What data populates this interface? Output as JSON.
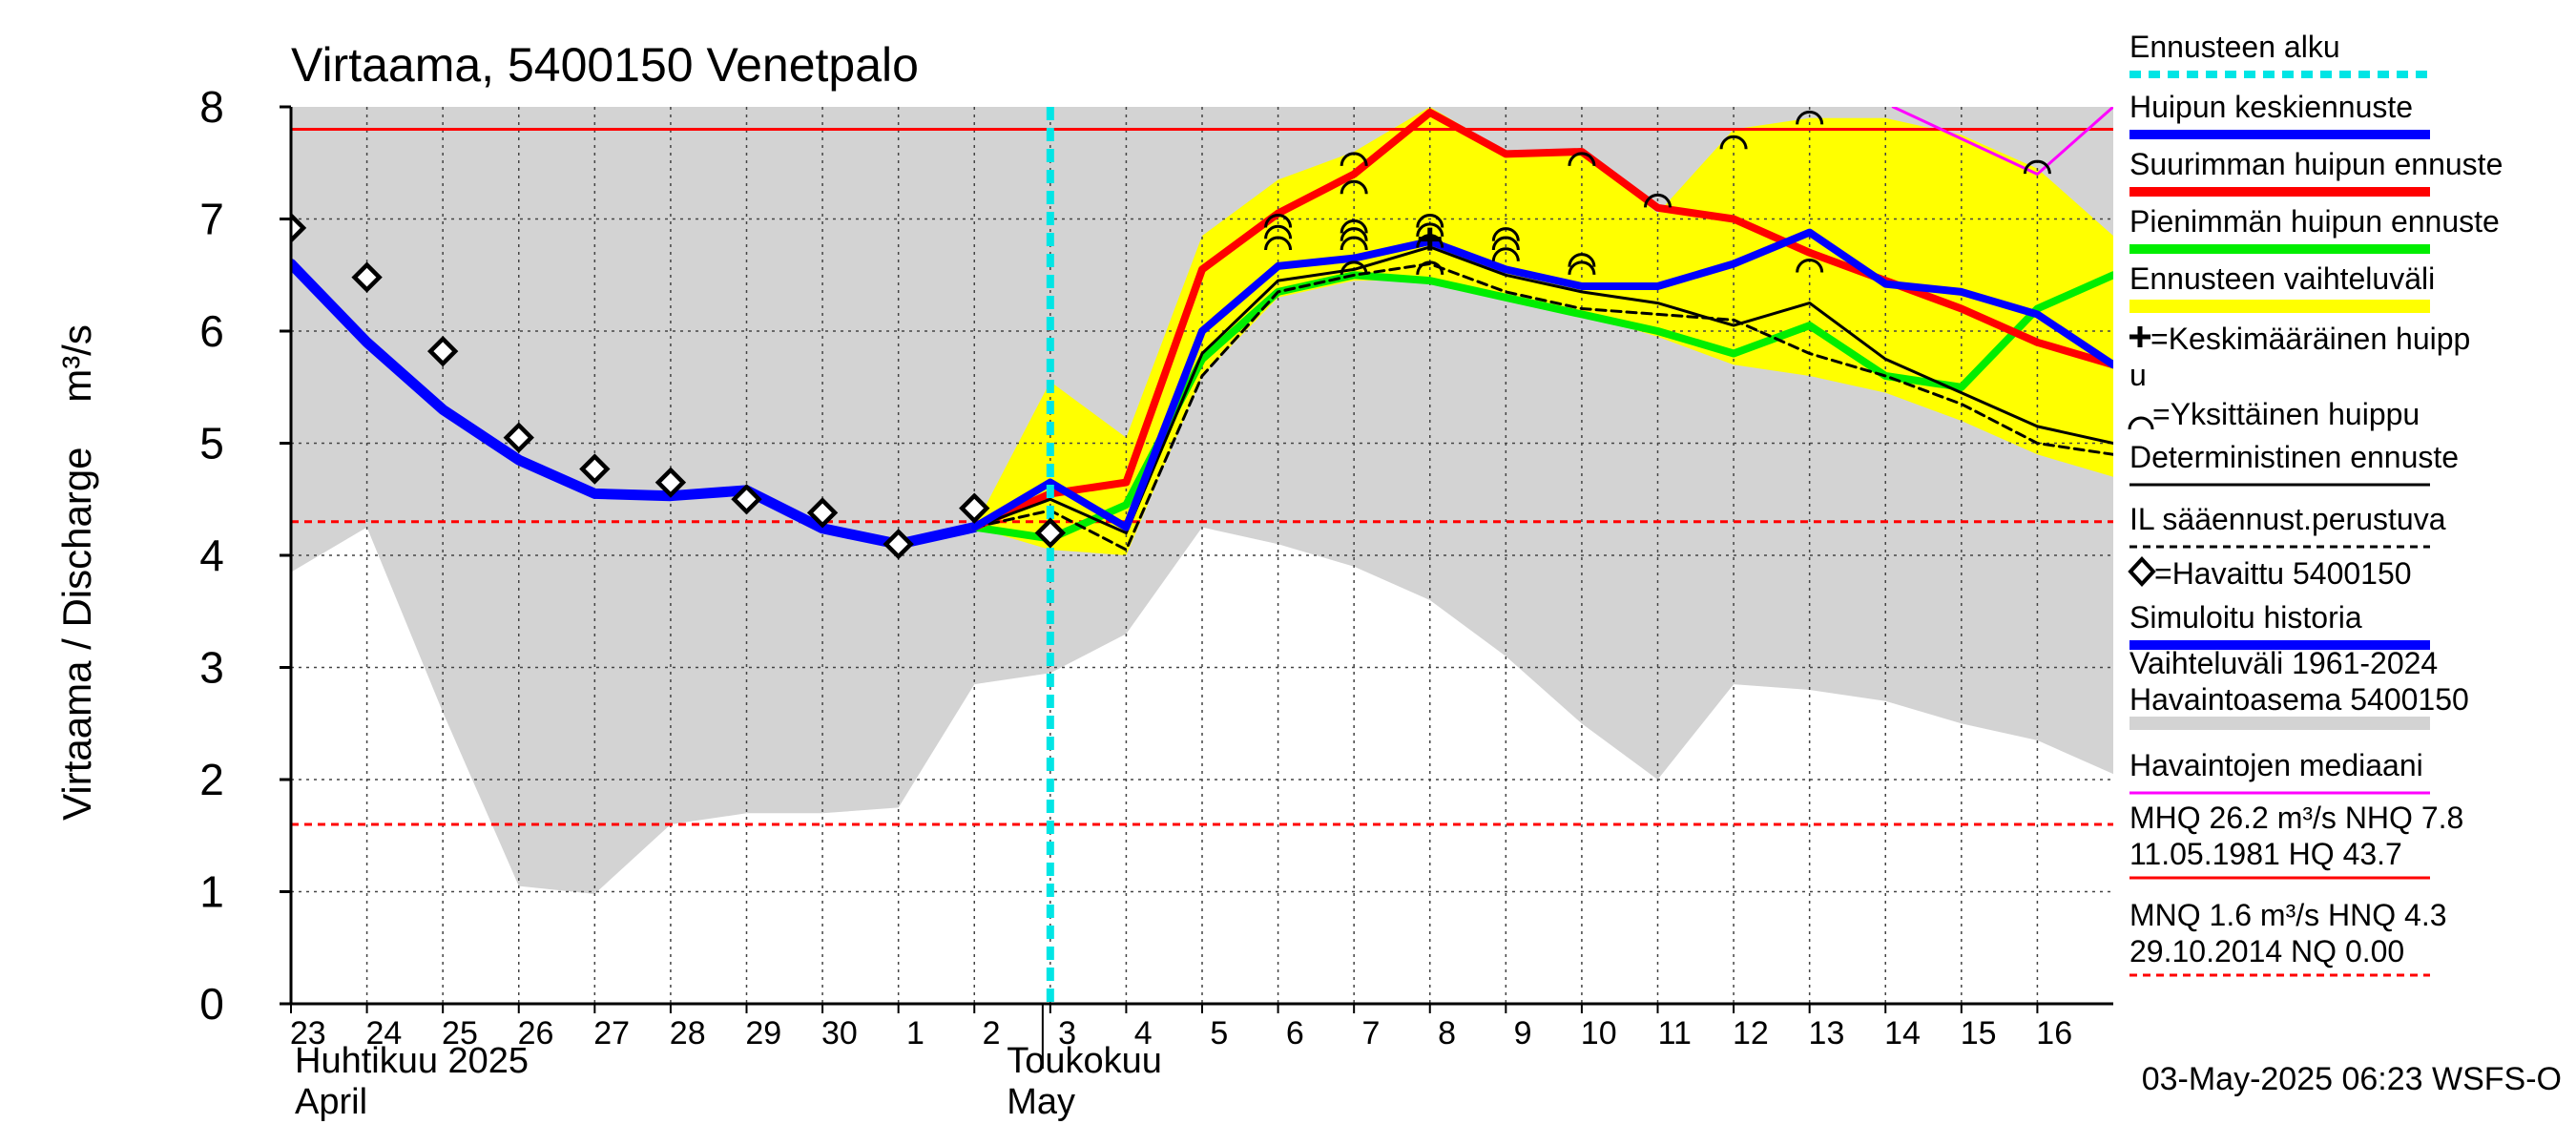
{
  "chart_data": {
    "type": "line",
    "title": "Virtaama, 5400150 Venetpalo",
    "ylabel": "Virtaama / Discharge    m³/s",
    "ylim": [
      0,
      8
    ],
    "yticks": [
      0,
      1,
      2,
      3,
      4,
      5,
      6,
      7,
      8
    ],
    "x_range": [
      0,
      24
    ],
    "x_days": [
      {
        "x": 0,
        "label": "23"
      },
      {
        "x": 1,
        "label": "24"
      },
      {
        "x": 2,
        "label": "25"
      },
      {
        "x": 3,
        "label": "26"
      },
      {
        "x": 4,
        "label": "27"
      },
      {
        "x": 5,
        "label": "28"
      },
      {
        "x": 6,
        "label": "29"
      },
      {
        "x": 7,
        "label": "30"
      },
      {
        "x": 8,
        "label": "1"
      },
      {
        "x": 9,
        "label": "2"
      },
      {
        "x": 10,
        "label": "3"
      },
      {
        "x": 11,
        "label": "4"
      },
      {
        "x": 12,
        "label": "5"
      },
      {
        "x": 13,
        "label": "6"
      },
      {
        "x": 14,
        "label": "7"
      },
      {
        "x": 15,
        "label": "8"
      },
      {
        "x": 16,
        "label": "9"
      },
      {
        "x": 17,
        "label": "10"
      },
      {
        "x": 18,
        "label": "11"
      },
      {
        "x": 19,
        "label": "12"
      },
      {
        "x": 20,
        "label": "13"
      },
      {
        "x": 21,
        "label": "14"
      },
      {
        "x": 22,
        "label": "15"
      },
      {
        "x": 23,
        "label": "16"
      }
    ],
    "month_labels": [
      {
        "line1": "Huhtikuu  2025",
        "line2": "April",
        "x": 0
      },
      {
        "line1": "Toukokuu",
        "line2": "May",
        "x": 9
      }
    ],
    "forecast_start": 10,
    "hlines": [
      {
        "name": "NHQ",
        "y": 7.8,
        "color": "#ff0000",
        "style": "solid"
      },
      {
        "name": "HNQ",
        "y": 4.3,
        "color": "#ff0000",
        "style": "dashed"
      },
      {
        "name": "MNQ",
        "y": 1.6,
        "color": "#ff0000",
        "style": "dashed"
      },
      {
        "name": "NQ",
        "y": 0.0,
        "color": "#ff0000",
        "style": "dashed"
      }
    ],
    "historical_range": {
      "x": [
        0,
        1,
        2,
        3,
        4,
        5,
        6,
        7,
        8,
        9,
        10,
        11,
        12,
        13,
        14,
        15,
        16,
        17,
        18,
        19,
        20,
        21,
        22,
        23,
        24
      ],
      "low": [
        3.85,
        4.25,
        2.6,
        1.05,
        0.98,
        1.6,
        1.7,
        1.7,
        1.75,
        2.85,
        2.95,
        3.3,
        4.25,
        4.1,
        3.9,
        3.6,
        3.1,
        2.5,
        2.0,
        2.85,
        2.8,
        2.7,
        2.5,
        2.35,
        2.05
      ],
      "high": [
        8,
        8,
        8,
        8,
        8,
        8,
        8,
        8,
        8,
        8,
        8,
        8,
        8,
        8,
        8,
        8,
        8,
        8,
        8,
        8,
        8,
        8,
        8,
        8,
        8
      ]
    },
    "forecast_range": {
      "x": [
        9,
        10,
        11,
        12,
        13,
        14,
        15,
        16,
        17,
        18,
        19,
        20,
        21,
        22,
        23,
        24
      ],
      "low": [
        4.25,
        4.05,
        4.0,
        5.6,
        6.3,
        6.45,
        6.45,
        6.3,
        6.15,
        5.95,
        5.7,
        5.6,
        5.45,
        5.2,
        4.9,
        4.7
      ],
      "high": [
        4.25,
        5.55,
        5.05,
        6.85,
        7.35,
        7.6,
        8.0,
        7.6,
        7.6,
        7.05,
        7.8,
        7.9,
        7.9,
        7.75,
        7.45,
        6.85
      ]
    },
    "series": [
      {
        "name": "Simuloitu historia",
        "color": "#0000ff",
        "width": 11,
        "style": "solid",
        "x": [
          0,
          1,
          2,
          3,
          4,
          5,
          6,
          7,
          8,
          9
        ],
        "values": [
          6.6,
          5.9,
          5.3,
          4.85,
          4.55,
          4.53,
          4.58,
          4.24,
          4.1,
          4.25
        ]
      },
      {
        "name": "Pienimmän huipun ennuste",
        "color": "#00ee00",
        "width": 8,
        "style": "solid",
        "x": [
          9,
          10,
          11,
          12,
          13,
          14,
          15,
          16,
          17,
          18,
          19,
          20,
          21,
          22,
          23,
          24
        ],
        "values": [
          4.25,
          4.15,
          4.45,
          5.75,
          6.35,
          6.5,
          6.45,
          6.3,
          6.15,
          6.0,
          5.8,
          6.05,
          5.6,
          5.5,
          6.2,
          6.5
        ]
      },
      {
        "name": "Suurimman huipun ennuste",
        "color": "#ff0000",
        "width": 8,
        "style": "solid",
        "x": [
          9,
          10,
          11,
          12,
          13,
          14,
          15,
          16,
          17,
          18,
          19,
          20,
          21,
          22,
          23,
          24
        ],
        "values": [
          4.25,
          4.55,
          4.65,
          6.55,
          7.05,
          7.4,
          7.95,
          7.58,
          7.6,
          7.1,
          7.0,
          6.7,
          6.45,
          6.2,
          5.9,
          5.7
        ]
      },
      {
        "name": "Deterministinen ennuste",
        "color": "#000000",
        "width": 3,
        "style": "solid",
        "x": [
          9,
          10,
          11,
          12,
          13,
          14,
          15,
          16,
          17,
          18,
          19,
          20,
          21,
          22,
          23,
          24
        ],
        "values": [
          4.25,
          4.5,
          4.2,
          5.8,
          6.45,
          6.55,
          6.75,
          6.5,
          6.35,
          6.25,
          6.05,
          6.25,
          5.75,
          5.45,
          5.15,
          5.0
        ]
      },
      {
        "name": "IL sääennust.perustuva",
        "color": "#000000",
        "width": 3,
        "style": "dashed",
        "x": [
          9,
          10,
          11,
          12,
          13,
          14,
          15,
          16,
          17,
          18,
          19,
          20,
          21,
          22,
          23,
          24
        ],
        "values": [
          4.25,
          4.4,
          4.05,
          5.6,
          6.35,
          6.5,
          6.6,
          6.35,
          6.2,
          6.15,
          6.1,
          5.8,
          5.6,
          5.35,
          5.0,
          4.9
        ]
      },
      {
        "name": "Huipun keskiennuste",
        "color": "#0000ff",
        "width": 8,
        "style": "solid",
        "x": [
          9,
          10,
          11,
          12,
          13,
          14,
          15,
          16,
          17,
          18,
          19,
          20,
          21,
          22,
          23,
          24
        ],
        "values": [
          4.25,
          4.65,
          4.25,
          6.0,
          6.58,
          6.65,
          6.8,
          6.55,
          6.4,
          6.4,
          6.6,
          6.88,
          6.42,
          6.35,
          6.15,
          5.7
        ]
      },
      {
        "name": "Havaintojen mediaani",
        "color": "#ff00ff",
        "width": 3,
        "style": "solid",
        "x": [
          21.1,
          23,
          24
        ],
        "values": [
          8.0,
          7.4,
          8.0
        ]
      }
    ],
    "observed": {
      "name": "Havaittu 5400150",
      "x": [
        0,
        1,
        2,
        3,
        4,
        5,
        6,
        7,
        8,
        9,
        10
      ],
      "values": [
        6.92,
        6.48,
        5.82,
        5.05,
        4.77,
        4.65,
        4.5,
        4.38,
        4.1,
        4.42,
        4.2
      ]
    },
    "mean_peaks": {
      "name": "Keskimääräinen huippu",
      "x": [
        15
      ],
      "values": [
        6.82
      ]
    },
    "single_peaks": {
      "name": "Yksittäinen huippu",
      "points": [
        [
          13,
          7.0
        ],
        [
          13,
          6.9
        ],
        [
          13,
          6.8
        ],
        [
          14,
          7.55
        ],
        [
          14,
          7.3
        ],
        [
          14,
          6.95
        ],
        [
          14,
          6.88
        ],
        [
          14,
          6.8
        ],
        [
          14,
          6.58
        ],
        [
          15,
          7.0
        ],
        [
          15,
          6.92
        ],
        [
          15,
          6.82
        ],
        [
          15,
          6.58
        ],
        [
          16,
          6.88
        ],
        [
          16,
          6.8
        ],
        [
          16,
          6.7
        ],
        [
          17,
          7.55
        ],
        [
          17,
          6.65
        ],
        [
          17,
          6.58
        ],
        [
          18,
          7.18
        ],
        [
          19,
          7.7
        ],
        [
          20,
          7.92
        ],
        [
          20,
          6.6
        ],
        [
          23,
          7.48
        ]
      ]
    },
    "legend": {
      "position": "right",
      "items": [
        {
          "label": "Ennusteen alku",
          "kind": "dashed-line",
          "color": "#00e5e5"
        },
        {
          "label": "Huipun keskiennuste",
          "kind": "line",
          "color": "#0000ff"
        },
        {
          "label": "Suurimman huipun ennuste",
          "kind": "line",
          "color": "#ff0000"
        },
        {
          "label": "Pienimmän huipun ennuste",
          "kind": "line",
          "color": "#00ee00"
        },
        {
          "label": "Ennusteen vaihteluväli",
          "kind": "band",
          "color": "#ffff00"
        },
        {
          "label": "=Keskimääräinen huipp",
          "label2": "u",
          "kind": "plus-marker",
          "color": "#000000"
        },
        {
          "label": "=Yksittäinen huippu",
          "kind": "arc-marker",
          "color": "#000000"
        },
        {
          "label": "Deterministinen ennuste",
          "kind": "thin-line",
          "color": "#000000"
        },
        {
          "label": "IL sääennust.perustuva",
          "kind": "thin-dashed",
          "color": "#000000"
        },
        {
          "label": "=Havaittu 5400150",
          "kind": "diamond-marker",
          "color": "#000000"
        },
        {
          "label": "Simuloitu historia",
          "kind": "line",
          "color": "#0000ff"
        },
        {
          "label": "Vaihteluväli 1961-2024",
          "label2": " Havaintoasema 5400150",
          "kind": "band",
          "color": "#d3d3d3"
        },
        {
          "label": "Havaintojen mediaani",
          "kind": "thin-line",
          "color": "#ff00ff"
        },
        {
          "label": "MHQ 26.2 m³/s NHQ  7.8",
          "label2": "11.05.1981 HQ 43.7",
          "kind": "thin-line",
          "color": "#ff0000"
        },
        {
          "label": "MNQ  1.6 m³/s HNQ  4.3",
          "label2": "29.10.2014 NQ 0.00",
          "kind": "thin-dashed",
          "color": "#ff0000"
        }
      ]
    },
    "footer": "03-May-2025 06:23 WSFS-O"
  }
}
